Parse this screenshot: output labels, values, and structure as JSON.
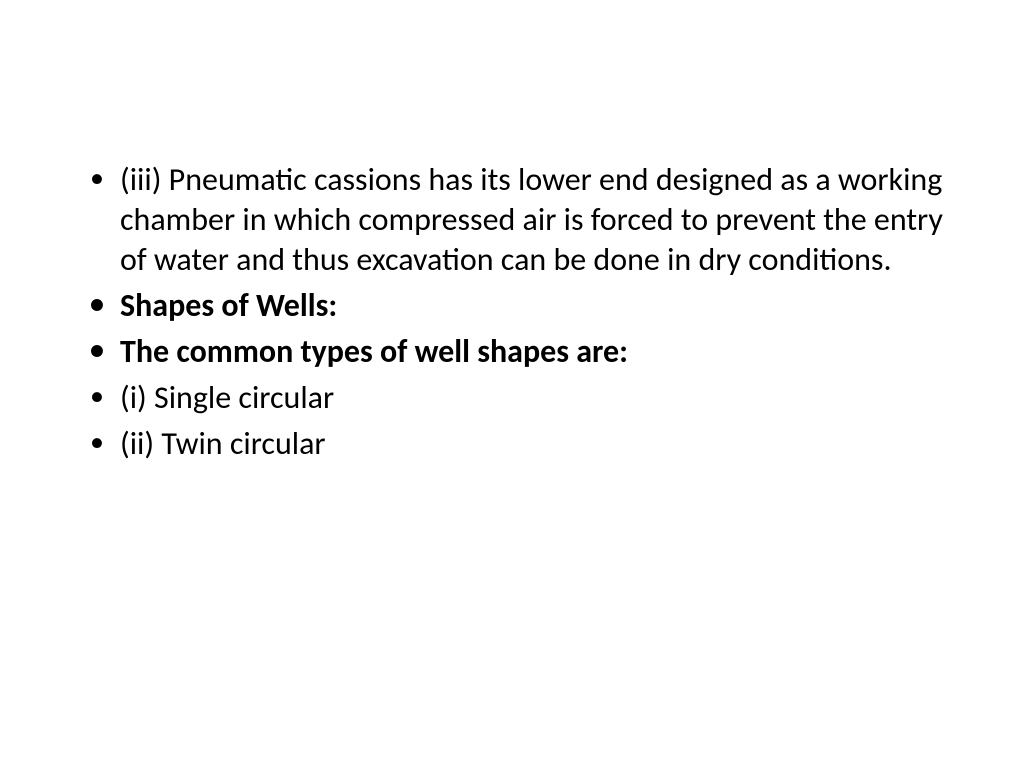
{
  "slide": {
    "background_color": "#ffffff",
    "text_color": "#000000",
    "font_family": "Calibri",
    "body_fontsize": 32,
    "line_height": 1.25,
    "bullet_char": "•",
    "bullets": [
      {
        "text": "(iii) Pneumatic cassions has its lower end designed as a working chamber in which compressed air is forced to prevent the entry of water and thus excavation can be done in dry conditions.",
        "bold": false
      },
      {
        "text": "Shapes of Wells:",
        "bold": true
      },
      {
        "text": "The common types of well shapes are:",
        "bold": true
      },
      {
        "text": "(i) Single circular",
        "bold": false
      },
      {
        "text": "(ii) Twin circular",
        "bold": false
      }
    ]
  }
}
